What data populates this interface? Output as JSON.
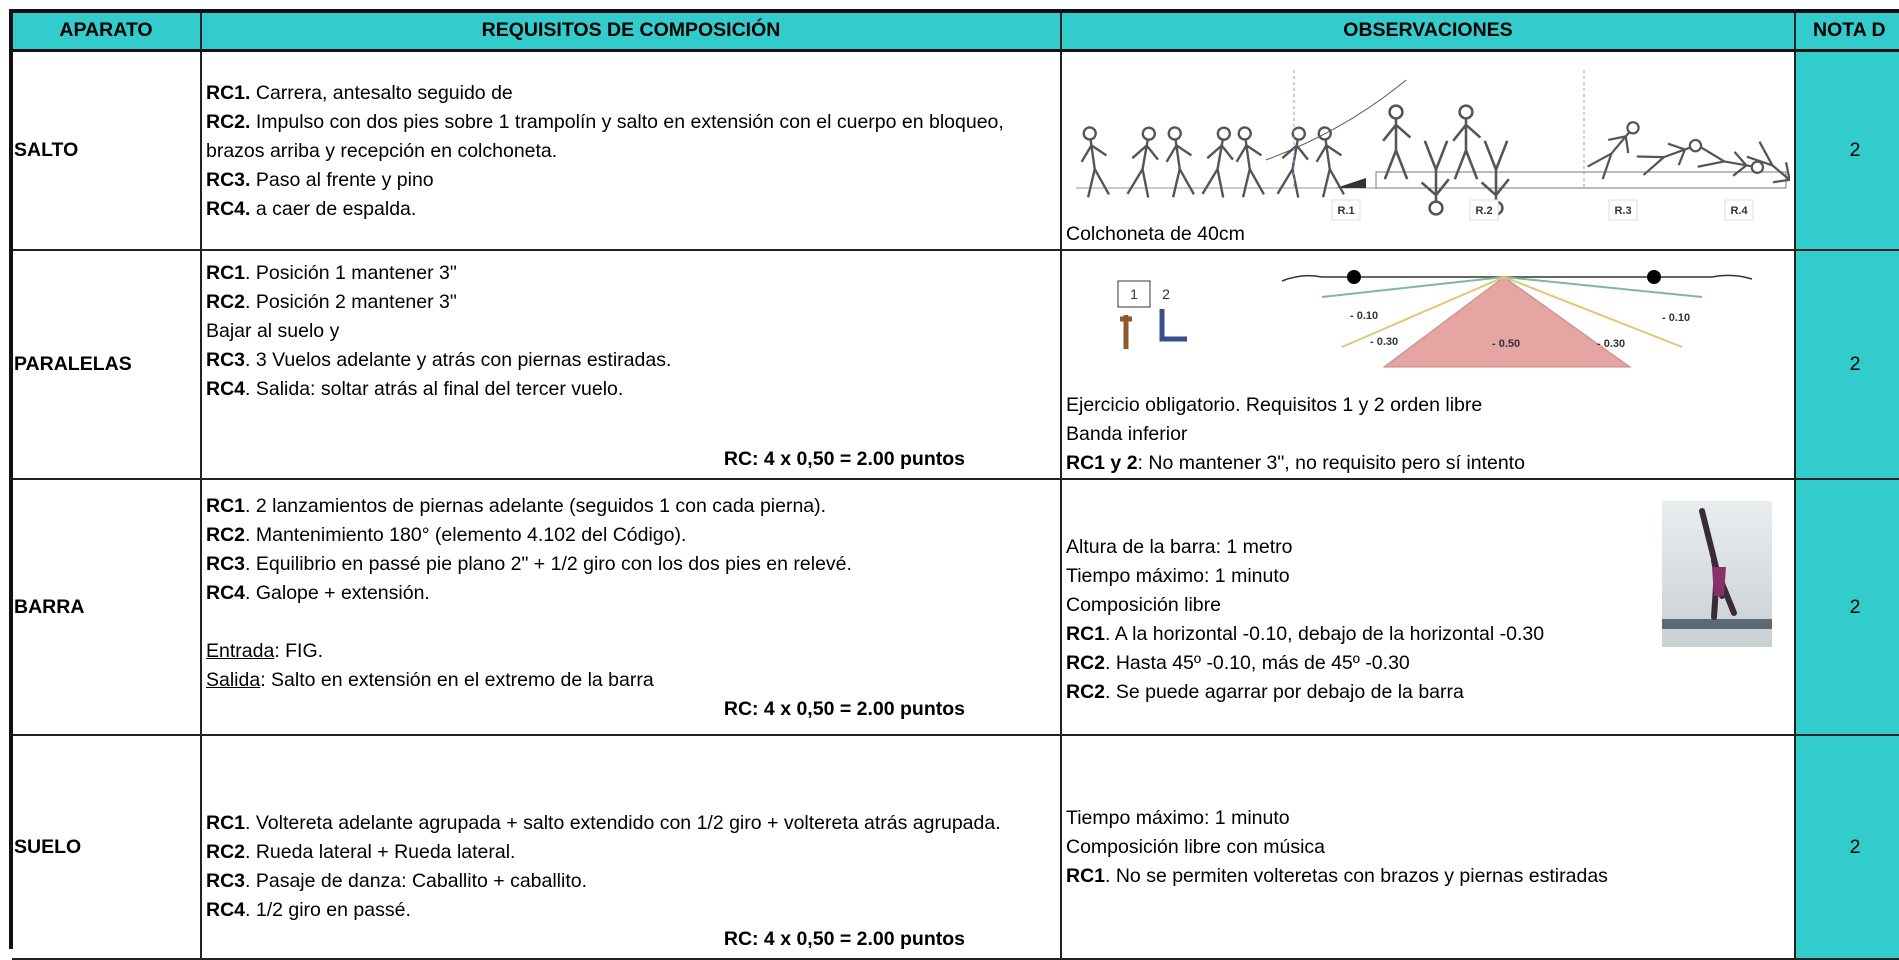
{
  "header": {
    "apparatus": "APARATO",
    "requirements": "REQUISITOS DE COMPOSICIÓN",
    "observations": "OBSERVACIONES",
    "nota": "NOTA D"
  },
  "rows": [
    {
      "apparatus": "SALTO",
      "requirements": [
        [
          {
            "b": "RC1.",
            "t": " Carrera, antesalto seguido de"
          },
          {
            "b": "RC2.",
            "t": " Impulso con dos pies sobre 1 trampolín y salto en extensión con el cuerpo en bloqueo, brazos arriba y recepción en colchoneta."
          },
          {
            "b": "RC3.",
            "t": " Paso al frente y pino"
          },
          {
            "b": "RC4.",
            "t": " a caer de espalda."
          }
        ]
      ],
      "observations": [
        [
          {
            "t": "Colchoneta de 40cm"
          }
        ]
      ],
      "image_labels": [
        "R.1",
        "R.2",
        "R.3",
        "R.4"
      ],
      "nota": 2
    },
    {
      "apparatus": "PARALELAS",
      "requirements": [
        [
          {
            "b": "RC1",
            "t": ". Posición 1 mantener 3\""
          },
          {
            "b": "RC2",
            "t": ". Posición 2 mantener 3\""
          },
          {
            "t": "Bajar al suelo y"
          },
          {
            "b": "RC3",
            "t": ". 3 Vuelos adelante y atrás con piernas estiradas."
          },
          {
            "b": "RC4",
            "t": ". Salida: soltar atrás al final del tercer vuelo."
          }
        ]
      ],
      "total": "RC: 4 x 0,50 = 2.00 puntos",
      "observations": [
        [
          {
            "t": "Ejercicio obligatorio. Requisitos 1 y 2 orden libre"
          },
          {
            "t": "Banda inferior"
          },
          {
            "b": "RC1 y 2",
            "t": ": No mantener 3\", no requisito pero sí intento"
          }
        ]
      ],
      "image_labels": [
        "1",
        "2",
        "- 0.10",
        "- 0.10",
        "- 0.30",
        "- 0.50",
        "- 0.30"
      ],
      "nota": 2
    },
    {
      "apparatus": "BARRA",
      "requirements": [
        [
          {
            "b": "RC1",
            "t": ". 2 lanzamientos de piernas adelante (seguidos 1 con cada pierna)."
          },
          {
            "b": "RC2",
            "t": ". Mantenimiento 180° (elemento 4.102 del Código)."
          },
          {
            "b": "RC3",
            "t": ". Equilibrio en passé pie plano 2\" + 1/2 giro con los dos pies en relevé."
          },
          {
            "b": "RC4",
            "t": ". Galope + extensión."
          }
        ],
        [
          {
            "u": "Entrada",
            "t": ": FIG."
          },
          {
            "u": "Salida",
            "t": ": Salto en extensión en el extremo de la barra"
          }
        ]
      ],
      "total": "RC: 4 x 0,50 = 2.00 puntos",
      "observations": [
        [
          {
            "t": "Altura de la barra: 1 metro"
          },
          {
            "t": "Tiempo máximo: 1 minuto"
          },
          {
            "t": "Composición libre"
          },
          {
            "b": "RC1",
            "t": ". A la horizontal -0.10, debajo de la horizontal -0.30"
          },
          {
            "b": "RC2",
            "t": ". Hasta 45º -0.10, más de 45º -0.30"
          },
          {
            "b": "RC2",
            "t": ". Se puede agarrar por debajo de la barra"
          }
        ]
      ],
      "nota": 2
    },
    {
      "apparatus": "SUELO",
      "requirements": [
        [
          {
            "b": "RC1",
            "t": ". Voltereta adelante agrupada + salto extendido con 1/2 giro + voltereta atrás agrupada."
          },
          {
            "b": "RC2",
            "t": ". Rueda lateral + Rueda lateral."
          },
          {
            "b": "RC3",
            "t": ". Pasaje de danza: Caballito + caballito."
          },
          {
            "b": "RC4",
            "t": ". 1/2 giro en passé."
          }
        ]
      ],
      "total": "RC: 4 x 0,50 = 2.00 puntos",
      "observations": [
        [
          {
            "t": "Tiempo máximo: 1 minuto"
          },
          {
            "t": "Composición libre con música"
          },
          {
            "b": "RC1",
            "t": ". No se permiten volteretas con brazos y piernas estiradas"
          }
        ]
      ],
      "nota": 2
    }
  ]
}
